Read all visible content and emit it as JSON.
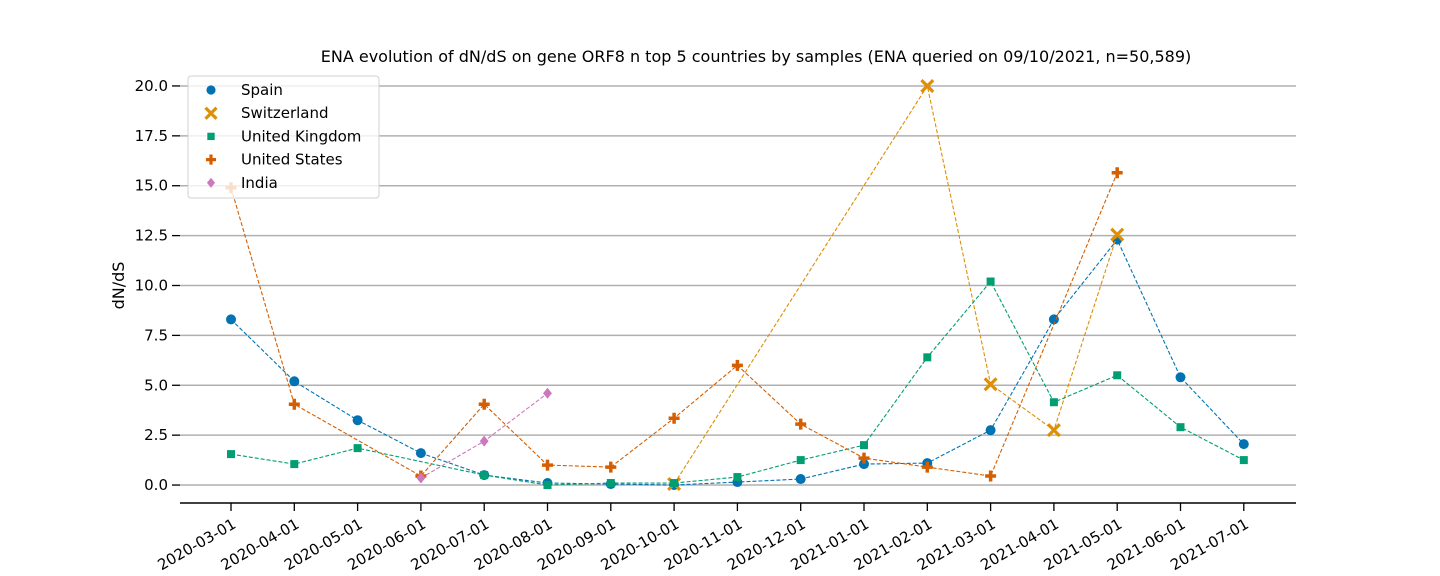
{
  "chart_data": {
    "type": "line",
    "title": "ENA evolution of dN/dS on gene ORF8 n top 5 countries by samples (ENA queried on 09/10/2021, n=50,589)",
    "xlabel": "",
    "ylabel": "dN/dS",
    "ylim": [
      -0.9,
      20.9
    ],
    "yticks": [
      0.0,
      2.5,
      5.0,
      7.5,
      10.0,
      12.5,
      15.0,
      17.5,
      20.0
    ],
    "ytick_labels": [
      "0.0",
      "2.5",
      "5.0",
      "7.5",
      "10.0",
      "12.5",
      "15.0",
      "17.5",
      "20.0"
    ],
    "grid": "horizontal",
    "legend_position": "top-left",
    "categories": [
      "2020-03-01",
      "2020-04-01",
      "2020-05-01",
      "2020-06-01",
      "2020-07-01",
      "2020-08-01",
      "2020-09-01",
      "2020-10-01",
      "2020-11-01",
      "2020-12-01",
      "2021-01-01",
      "2021-02-01",
      "2021-03-01",
      "2021-04-01",
      "2021-05-01",
      "2021-06-01",
      "2021-07-01"
    ],
    "series": [
      {
        "name": "Spain",
        "color": "#0173b2",
        "marker": "circle",
        "values": [
          8.3,
          5.2,
          3.25,
          1.6,
          0.5,
          0.1,
          0.05,
          0.0,
          0.15,
          0.3,
          1.05,
          1.1,
          2.75,
          8.3,
          12.3,
          5.4,
          2.05
        ]
      },
      {
        "name": "Switzerland",
        "color": "#de8f05",
        "marker": "x",
        "values": [
          null,
          null,
          null,
          null,
          null,
          null,
          null,
          0.05,
          null,
          null,
          null,
          20.0,
          5.05,
          2.75,
          12.55,
          null,
          null
        ]
      },
      {
        "name": "United Kingdom",
        "color": "#029e73",
        "marker": "square",
        "values": [
          1.55,
          1.05,
          1.85,
          null,
          0.5,
          0.0,
          0.1,
          0.1,
          0.4,
          1.25,
          2.0,
          6.4,
          10.2,
          4.15,
          5.5,
          2.9,
          1.25
        ]
      },
      {
        "name": "United States",
        "color": "#d55e00",
        "marker": "plus",
        "values": [
          14.9,
          4.05,
          null,
          0.45,
          4.05,
          1.0,
          0.9,
          3.35,
          6.0,
          3.05,
          1.35,
          0.9,
          0.45,
          null,
          15.65,
          null,
          null
        ]
      },
      {
        "name": "India",
        "color": "#cc78bc",
        "marker": "diamond",
        "values": [
          null,
          null,
          null,
          0.35,
          2.2,
          4.6,
          null,
          null,
          null,
          null,
          null,
          null,
          null,
          null,
          null,
          null,
          null
        ]
      }
    ]
  }
}
